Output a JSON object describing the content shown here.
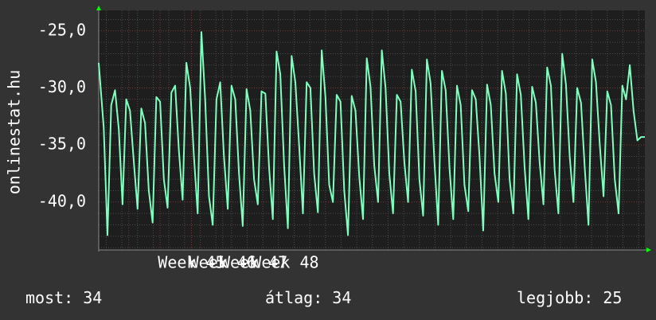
{
  "chart_data": {
    "type": "line",
    "ylabel": "onlinestat.hu",
    "ylim": [
      -44.2,
      -23.2
    ],
    "y_ticks": [
      "-25,0",
      "-30,0",
      "-35,0",
      "-40,0"
    ],
    "y_tick_values": [
      -25,
      -30,
      -35,
      -40
    ],
    "x_tick_labels": [
      "Week 45",
      "Week 46",
      "Week 47",
      "Week 48"
    ],
    "x_week_starts": [
      0.24,
      0.49,
      0.74,
      0.99
    ],
    "grid": true,
    "colors": {
      "background": "#333333",
      "plot_area": "#1e1e1e",
      "grid": "#4a4a4a",
      "grid_major": "#7a3838",
      "line": "#7fffbf",
      "axis_arrow": "#00ff00"
    },
    "series": [
      {
        "x": [
          0,
          0.04,
          0.07,
          0.1,
          0.13,
          0.16,
          0.19,
          0.22,
          0.25,
          0.28,
          0.31,
          0.34,
          0.37,
          0.4,
          0.43,
          0.46,
          0.49,
          0.52,
          0.55,
          0.58,
          0.61,
          0.64,
          0.67,
          0.7,
          0.73,
          0.76,
          0.79,
          0.82,
          0.85,
          0.88,
          0.91,
          0.94,
          0.97,
          1.0,
          1.03,
          1.06,
          1.09,
          1.12,
          1.15,
          1.18,
          1.21,
          1.24,
          1.27,
          1.3,
          1.33,
          1.36,
          1.39,
          1.42,
          1.45,
          1.48,
          1.51,
          1.54,
          1.57,
          1.6,
          1.63,
          1.66,
          1.69,
          1.72,
          1.75,
          1.78,
          1.81,
          1.84,
          1.87,
          1.9,
          1.93,
          1.96,
          1.99,
          2.02,
          2.05,
          2.08,
          2.11,
          2.14,
          2.17,
          2.2,
          2.23,
          2.26,
          2.29,
          2.32,
          2.35,
          2.38,
          2.41,
          2.44,
          2.47,
          2.5,
          2.53,
          2.56,
          2.59,
          2.62,
          2.65,
          2.68,
          2.71,
          2.74,
          2.77,
          2.8,
          2.83,
          2.86,
          2.89,
          2.92,
          2.95,
          2.98,
          3.01,
          3.04,
          3.07,
          3.1,
          3.13,
          3.16,
          3.19,
          3.22,
          3.25,
          3.28,
          3.31,
          3.34,
          3.37,
          3.4,
          3.43,
          3.46,
          3.49,
          3.52,
          3.55,
          3.58,
          3.61,
          3.64,
          3.67,
          3.7,
          3.73,
          3.76,
          3.79,
          3.82,
          3.85,
          3.88,
          3.91,
          3.94,
          3.97,
          4.0,
          4.03,
          4.06,
          4.09,
          4.12,
          4.15,
          4.18,
          4.21,
          4.24,
          4.27,
          4.3,
          4.33,
          4.36
        ],
        "y": [
          -27.8,
          -33.5,
          -42.9,
          -31.5,
          -30.2,
          -33.6,
          -40.2,
          -31.0,
          -32.0,
          -36.5,
          -40.6,
          -31.8,
          -33.1,
          -39.0,
          -41.8,
          -30.8,
          -31.2,
          -38.0,
          -40.5,
          -30.4,
          -29.8,
          -35.5,
          -39.8,
          -27.8,
          -30.0,
          -36.0,
          -41.0,
          -25.1,
          -31.0,
          -39.5,
          -42.0,
          -31.0,
          -29.5,
          -36.0,
          -40.6,
          -29.8,
          -31.0,
          -37.5,
          -42.1,
          -30.1,
          -32.0,
          -38.0,
          -40.2,
          -30.3,
          -30.5,
          -37.0,
          -41.5,
          -26.8,
          -28.8,
          -36.8,
          -42.3,
          -27.2,
          -29.5,
          -35.0,
          -41.0,
          -29.5,
          -30.0,
          -37.5,
          -40.9,
          -26.7,
          -30.8,
          -38.5,
          -40.0,
          -30.6,
          -31.2,
          -39.0,
          -42.9,
          -30.7,
          -32.0,
          -37.8,
          -41.5,
          -27.4,
          -29.9,
          -36.8,
          -40.0,
          -26.7,
          -30.0,
          -37.5,
          -41.0,
          -30.6,
          -31.2,
          -36.5,
          -40.0,
          -28.4,
          -30.3,
          -38.0,
          -41.2,
          -27.5,
          -29.6,
          -36.5,
          -42.0,
          -28.5,
          -30.2,
          -37.0,
          -41.5,
          -29.8,
          -31.5,
          -38.5,
          -40.8,
          -30.2,
          -31.0,
          -36.0,
          -42.5,
          -29.7,
          -31.5,
          -37.5,
          -40.0,
          -28.5,
          -30.5,
          -38.0,
          -41.0,
          -28.8,
          -30.6,
          -37.0,
          -41.5,
          -29.9,
          -31.3,
          -36.5,
          -40.2,
          -28.2,
          -29.8,
          -37.2,
          -41.0,
          -27.0,
          -29.7,
          -36.0,
          -40.0,
          -30.0,
          -31.3,
          -37.0,
          -42.0,
          -27.5,
          -29.5,
          -35.0,
          -39.5,
          -30.3,
          -31.5,
          -38.0,
          -41.0,
          -29.8,
          -31.0,
          -28.0,
          -32.0,
          -34.6,
          -34.3,
          -34.3
        ]
      }
    ]
  },
  "footer": {
    "current": "most: 34",
    "average": "átlag: 34",
    "best": "legjobb: 25"
  }
}
